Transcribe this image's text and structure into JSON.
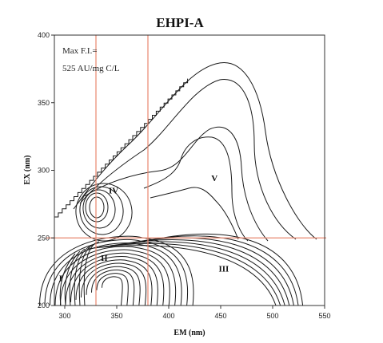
{
  "chart_data": {
    "type": "contour",
    "title": "EHPI-A",
    "xlabel": "EM (nm)",
    "ylabel": "EX (nm)",
    "xlim": [
      290,
      550
    ],
    "ylim": [
      200,
      400
    ],
    "xticks": [
      300,
      350,
      400,
      450,
      500,
      550
    ],
    "yticks": [
      200,
      250,
      300,
      350,
      400
    ],
    "annotation": [
      "Max F.I.=",
      "525 AU/mg C/L"
    ],
    "region_labels": [
      {
        "text": "I",
        "em": 296,
        "ex": 218
      },
      {
        "text": "II",
        "em": 338,
        "ex": 233
      },
      {
        "text": "III",
        "em": 453,
        "ex": 225
      },
      {
        "text": "IV",
        "em": 347,
        "ex": 283
      },
      {
        "text": "V",
        "em": 444,
        "ex": 292
      }
    ],
    "boundary_lines": {
      "em": [
        330,
        380
      ],
      "ex": [
        250
      ]
    },
    "colors": {
      "contour": "#1a1a1a",
      "boundary": "#e8876f",
      "frame": "#333333"
    }
  }
}
